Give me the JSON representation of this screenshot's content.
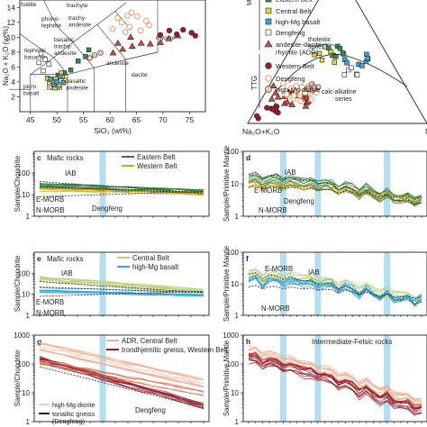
{
  "chart_data": [
    {
      "id": "a",
      "type": "scatter",
      "title": "",
      "xlabel": "SiO₂ (wt%)",
      "ylabel": "Na₂O + K₂O (wt%)",
      "xlim": [
        43,
        78
      ],
      "ylim": [
        0,
        15
      ],
      "x_ticks": [
        "45",
        "50",
        "55",
        "60",
        "65",
        "70",
        "75"
      ],
      "y_ticks": [
        "2",
        "4",
        "6",
        "8",
        "10",
        "12",
        "14"
      ],
      "field_labels": [
        "foidite",
        "phono-tephrite",
        "trachyte",
        "trachy-andesite",
        "rhyolite",
        "tephrite/basanite",
        "basaltic trachy-andesite",
        "picro basalt",
        "basalt",
        "basaltic andesite",
        "andesite",
        "dacite"
      ],
      "series": [
        {
          "name": "Eastern Belt",
          "marker": "square",
          "color": "#3a8a4a",
          "points": [
            [
              50.2,
              4.9
            ],
            [
              51.4,
              5.2
            ],
            [
              52.6,
              5.6
            ],
            [
              55.4,
              7.4
            ],
            [
              56.0,
              8.3
            ],
            [
              54.0,
              6.8
            ]
          ]
        },
        {
          "name": "Central Belt",
          "marker": "square",
          "color": "#e6d23a",
          "points": [
            [
              48.6,
              3.8
            ],
            [
              49.2,
              4.1
            ],
            [
              49.8,
              4.4
            ],
            [
              50.4,
              3.6
            ],
            [
              51.0,
              4.7
            ],
            [
              49.6,
              3.2
            ],
            [
              48.2,
              4.5
            ],
            [
              51.6,
              4.2
            ],
            [
              50.8,
              5.2
            ]
          ]
        },
        {
          "name": "high-Mg basalt",
          "marker": "square",
          "color": "#3aa3dc",
          "points": [
            [
              48.8,
              4.4
            ],
            [
              49.4,
              3.6
            ],
            [
              50.0,
              4.0
            ],
            [
              50.6,
              4.7
            ],
            [
              51.2,
              3.9
            ]
          ]
        },
        {
          "name": "Dengfeng",
          "marker": "square-open",
          "color": "#ffffff",
          "points": [
            [
              47.0,
              7.8
            ],
            [
              47.8,
              7.0
            ],
            [
              48.5,
              6.4
            ],
            [
              47.4,
              5.5
            ],
            [
              46.6,
              6.6
            ]
          ]
        },
        {
          "name": "andesite-dacite-rhyolite (ADR)",
          "marker": "triangle",
          "color": "#d94a3a",
          "points": [
            [
              60.6,
              7.9
            ],
            [
              62.4,
              8.4
            ],
            [
              64.2,
              8.8
            ],
            [
              65.9,
              9.2
            ],
            [
              67.6,
              9.1
            ],
            [
              69.5,
              9.3
            ],
            [
              71.1,
              9.8
            ],
            [
              72.8,
              10.2
            ],
            [
              61.5,
              9.2
            ],
            [
              63.9,
              10.0
            ]
          ]
        },
        {
          "name": "Western Belt",
          "marker": "circle",
          "color": "#9a1e2a",
          "points": [
            [
              69.5,
              10.3
            ],
            [
              71.2,
              10.9
            ],
            [
              72.6,
              10.4
            ],
            [
              73.8,
              11.0
            ],
            [
              75.4,
              10.6
            ],
            [
              76.1,
              10.2
            ]
          ]
        },
        {
          "name": "Dengfeng",
          "marker": "circle-open",
          "color": "#e89a6c",
          "points": [
            [
              60.5,
              11.1
            ],
            [
              62.2,
              12.0
            ],
            [
              63.7,
              11.4
            ],
            [
              65.2,
              12.8
            ],
            [
              66.8,
              12.2
            ],
            [
              64.1,
              13.3
            ],
            [
              61.4,
              12.6
            ],
            [
              67.4,
              11.6
            ],
            [
              62.9,
              10.7
            ],
            [
              65.8,
              10.9
            ],
            [
              63.3,
              12.9
            ]
          ]
        },
        {
          "name": "high-Mg diorite",
          "marker": "circle",
          "color": "#f2c8b4",
          "points": [
            [
              56.2,
              7.2
            ],
            [
              57.1,
              7.6
            ],
            [
              58.2,
              7.9
            ]
          ]
        }
      ]
    },
    {
      "id": "b",
      "type": "scatter",
      "subtype": "ternary",
      "corner_labels": [
        "Na₂O+K₂O",
        "MgO"
      ],
      "field_labels": [
        "tholeiitic series",
        "calc-alkaline series"
      ],
      "legend_title_mafic": "Mafic rocks",
      "legend_title_ttg": "TTG",
      "legend": [
        {
          "label": "Eastern Belt",
          "marker": "square",
          "color": "#3a8a4a"
        },
        {
          "label": "Central Belt",
          "marker": "square",
          "color": "#e6d23a"
        },
        {
          "label": "high-Mg basalt",
          "marker": "square",
          "color": "#3aa3dc"
        },
        {
          "label": "Dengfeng",
          "marker": "square-open",
          "color": "#ffffff"
        },
        {
          "label": "andesite-dacite-rhyolite (ADR)",
          "marker": "triangle",
          "color": "#d94a3a"
        },
        {
          "label": "Western Belt",
          "marker": "circle",
          "color": "#9a1e2a"
        },
        {
          "label": "Dengfeng",
          "marker": "circle-open",
          "color": "#e89a6c"
        },
        {
          "label": "high-Mg diorite",
          "marker": "circle",
          "color": "#f2c8b4"
        }
      ]
    },
    {
      "id": "c",
      "type": "line",
      "ylabel": "Sample/Chondrite",
      "ylim_log": [
        1,
        1000
      ],
      "y_ticks": [
        "1",
        "10",
        "100"
      ],
      "heading": "Mafic rocks",
      "legend": [
        {
          "label": "Eastern Belt",
          "color": "#2f7d3a"
        },
        {
          "label": "Western Belt",
          "color": "#d9a20f"
        }
      ],
      "ref_labels": [
        "IAB",
        "E-MORB",
        "N-MORB",
        "Dengfeng"
      ]
    },
    {
      "id": "d",
      "type": "line",
      "ylabel": "Sample/Primitive Mantle",
      "ylim_log": [
        1,
        100
      ],
      "y_ticks": [
        "1",
        "10",
        "100"
      ],
      "ref_labels": [
        "IAB",
        "E-MORB",
        "Dengfeng",
        "N-MORB"
      ]
    },
    {
      "id": "e",
      "type": "line",
      "ylabel": "Sample/Chondrite",
      "ylim_log": [
        1,
        1000
      ],
      "y_ticks": [
        "1",
        "10",
        "100"
      ],
      "heading": "Mafic rocks",
      "legend": [
        {
          "label": "Central Belt",
          "color": "#b7cf7a"
        },
        {
          "label": "high-Mg basalt",
          "color": "#3aa3dc"
        }
      ],
      "ref_labels": [
        "IAB",
        "E-MORB",
        "N-MORB"
      ]
    },
    {
      "id": "f",
      "type": "line",
      "ylabel": "Sample/Primitive Mantle",
      "ylim_log": [
        1,
        100
      ],
      "y_ticks": [
        "1",
        "10",
        "100"
      ],
      "ref_labels": [
        "E-MORB",
        "IAB",
        "N-MORB"
      ]
    },
    {
      "id": "g",
      "type": "line",
      "ylabel": "Sample/Chondrite",
      "ylim_log": [
        1,
        1000
      ],
      "y_ticks": [
        "1",
        "10",
        "100",
        "1000"
      ],
      "legend": [
        {
          "label": "ADR, Central Belt",
          "color": "#f0b090"
        },
        {
          "label": "trondhjemitic gneiss, Western Belt",
          "color": "#9a1e2a"
        }
      ],
      "legend2": [
        {
          "label": "high-Mg diorite",
          "color": "#f2c8b4"
        },
        {
          "label": "tonalitic gneiss (Dengfeng)",
          "color": "#222222"
        }
      ],
      "ref_labels": [
        "Dengfeng"
      ]
    },
    {
      "id": "h",
      "type": "line",
      "ylabel": "Sample/Primitive Mantle",
      "ylim_log": [
        1,
        1000
      ],
      "y_ticks": [
        "1",
        "10",
        "100",
        "1000"
      ],
      "heading": "Intermediate-Felsic rocks"
    }
  ],
  "colors": {
    "eastern": "#2f7d3a",
    "western_yellow": "#d9a20f",
    "central": "#b7cf7a",
    "highmg_basalt": "#3aa3dc",
    "adr": "#f0b090",
    "trondhjemitic": "#9a1e2a",
    "band": "#9fd8ef"
  }
}
